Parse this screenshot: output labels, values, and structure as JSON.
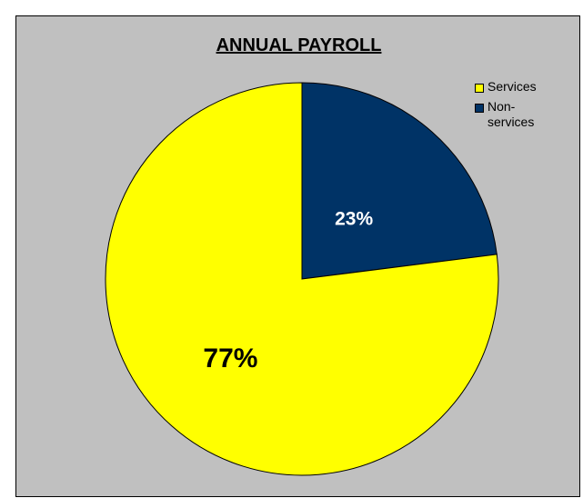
{
  "chart_data": {
    "type": "pie",
    "title": "ANNUAL PAYROLL",
    "slices": [
      {
        "label": "Services",
        "value": 77,
        "display": "77%",
        "color": "#ffff00",
        "label_color": "#000000"
      },
      {
        "label": "Non-services",
        "value": 23,
        "display": "23%",
        "color": "#003366",
        "label_color": "#ffffff"
      }
    ],
    "legend": {
      "placement": "top-right",
      "items": [
        {
          "label": "Services",
          "color": "#ffff00"
        },
        {
          "label": "Non-\nservices",
          "color": "#003366"
        }
      ]
    },
    "background": "#c0c0c0"
  }
}
